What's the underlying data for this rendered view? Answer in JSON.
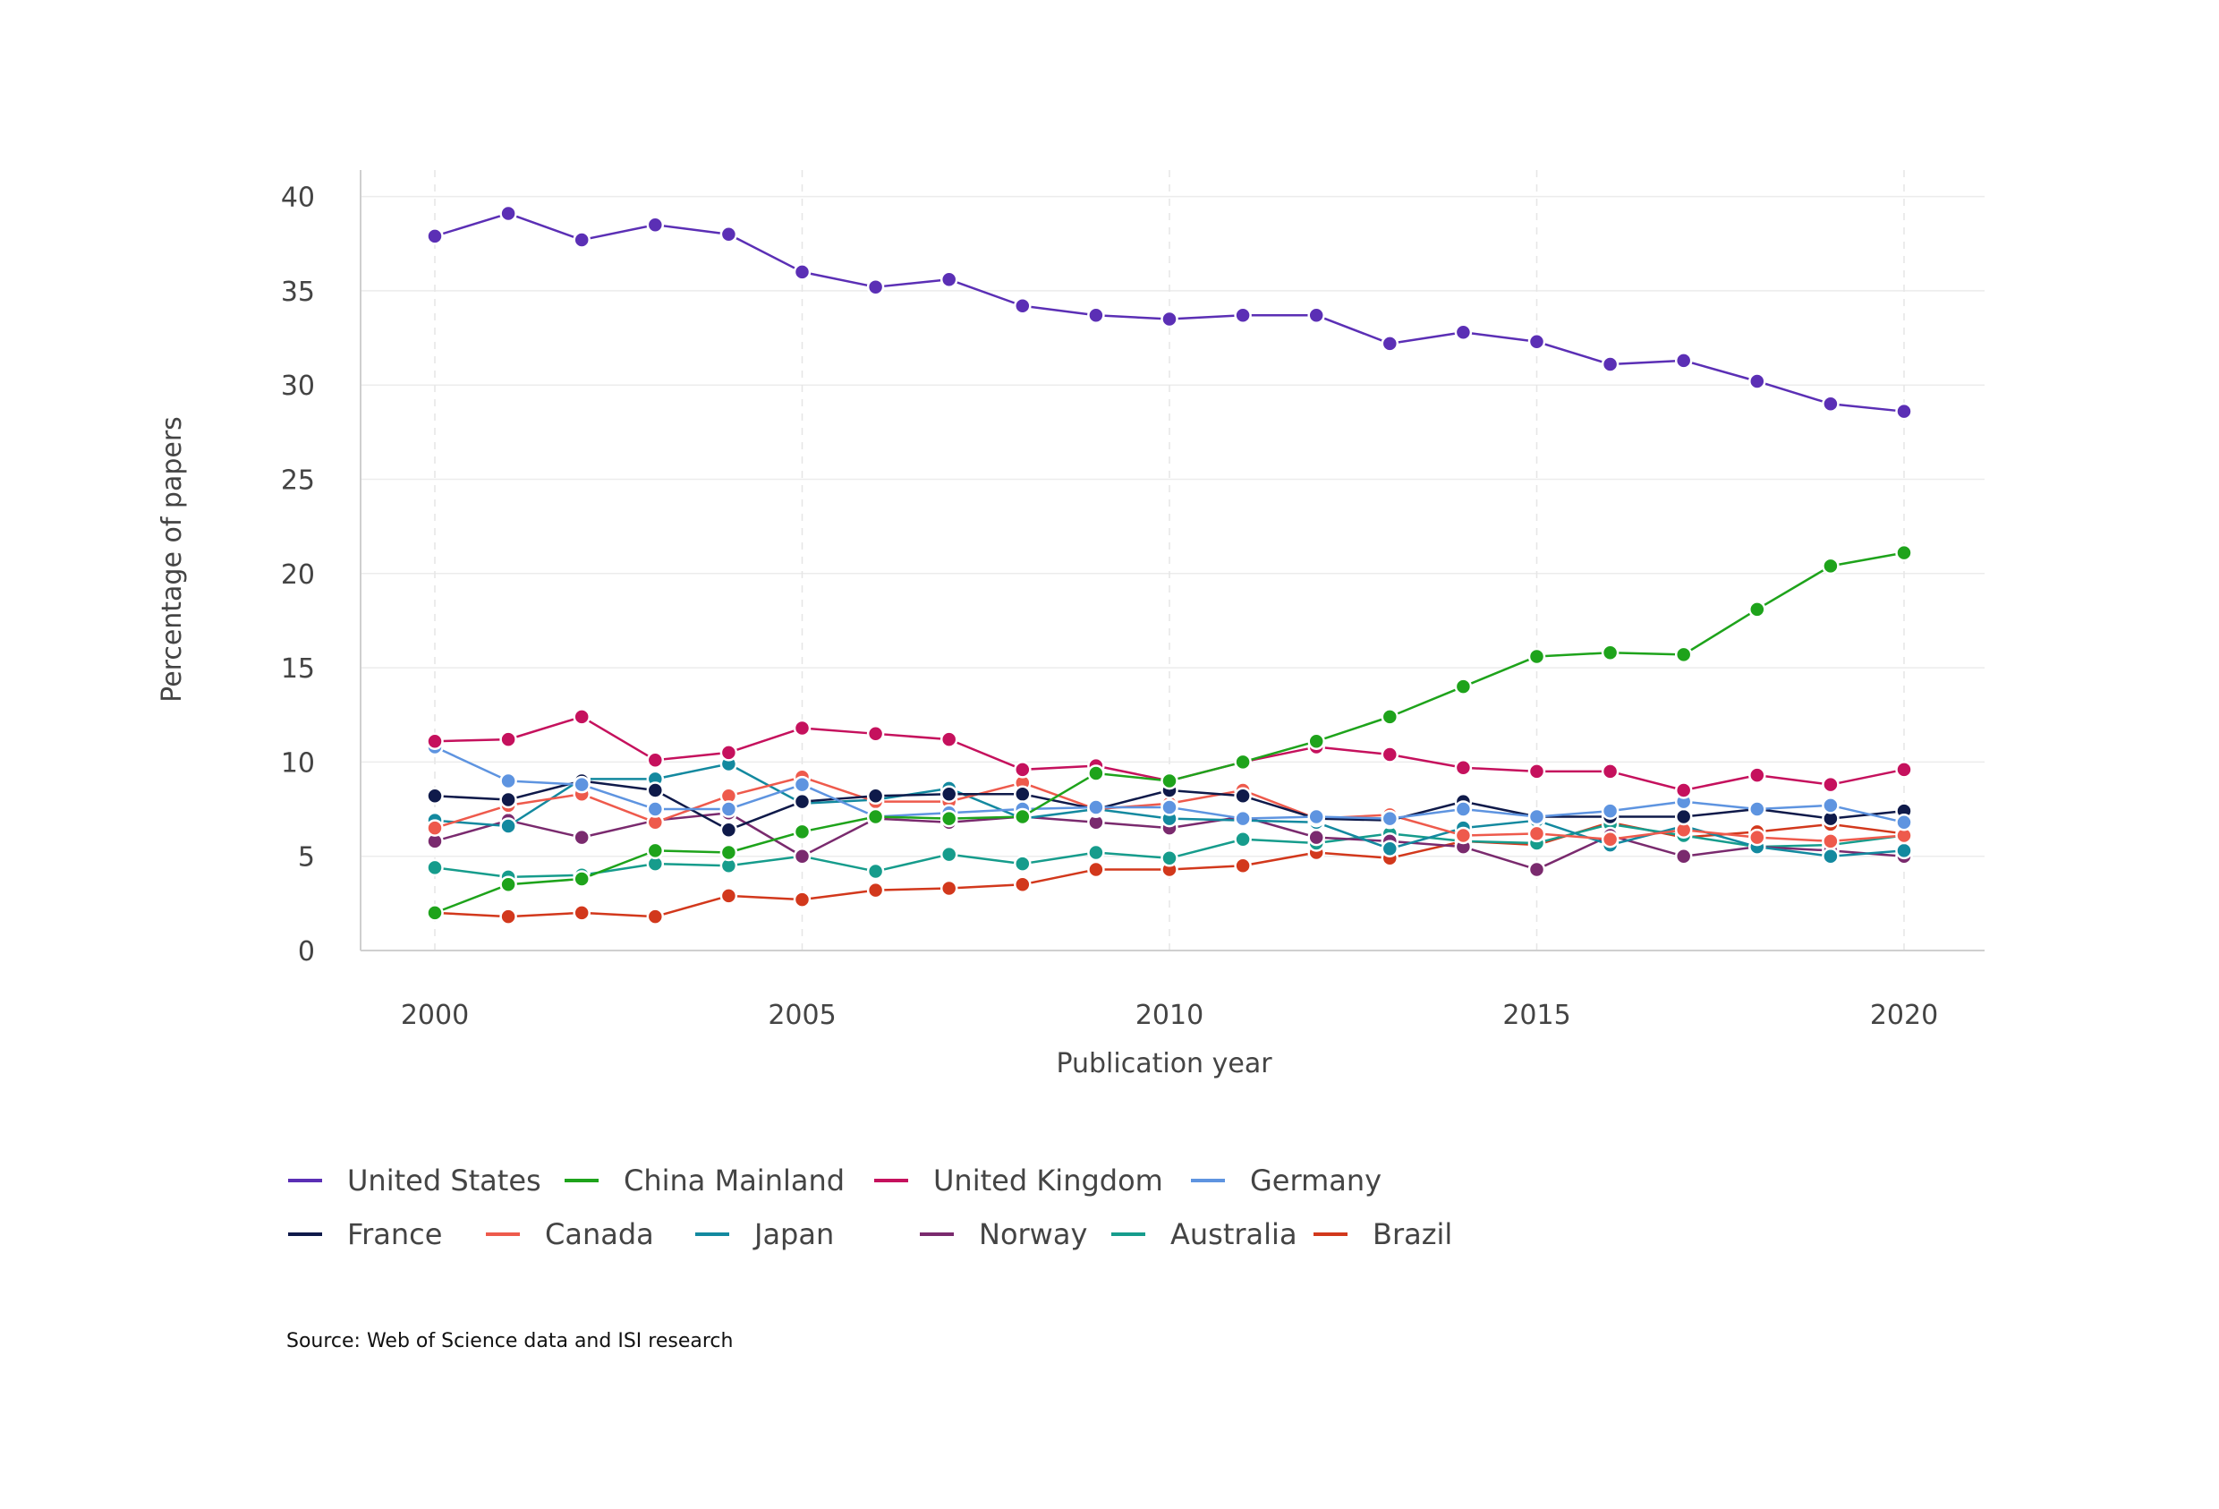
{
  "chart_data": {
    "type": "line",
    "title": "",
    "xlabel": "Publication year",
    "ylabel": "Percentage of papers",
    "xlim": [
      1999,
      2021
    ],
    "ylim": [
      0,
      41
    ],
    "x_ticks": [
      2000,
      2005,
      2010,
      2015,
      2020
    ],
    "y_ticks": [
      0,
      5,
      10,
      15,
      20,
      25,
      30,
      35,
      40
    ],
    "grid": true,
    "legend_position": "bottom",
    "x": [
      2000,
      2001,
      2002,
      2003,
      2004,
      2005,
      2006,
      2007,
      2008,
      2009,
      2010,
      2011,
      2012,
      2013,
      2014,
      2015,
      2016,
      2017,
      2018,
      2019,
      2020
    ],
    "series": [
      {
        "name": "United States",
        "color": "#5b2fb5",
        "values": [
          37.9,
          39.1,
          37.7,
          38.5,
          38.0,
          36.0,
          35.2,
          35.6,
          34.2,
          33.7,
          33.5,
          33.7,
          33.7,
          32.2,
          32.8,
          32.3,
          31.1,
          31.3,
          30.2,
          29.0,
          28.6
        ]
      },
      {
        "name": "China Mainland",
        "color": "#1ea31b",
        "values": [
          2.0,
          3.5,
          3.8,
          5.3,
          5.2,
          6.3,
          7.1,
          7.0,
          7.1,
          9.4,
          9.0,
          10.0,
          11.1,
          12.4,
          14.0,
          15.6,
          15.8,
          15.7,
          18.1,
          20.4,
          21.1
        ]
      },
      {
        "name": "United Kingdom",
        "color": "#c5115d",
        "values": [
          11.1,
          11.2,
          12.4,
          10.1,
          10.5,
          11.8,
          11.5,
          11.2,
          9.6,
          9.8,
          9.0,
          10.0,
          10.8,
          10.4,
          9.7,
          9.5,
          9.5,
          8.5,
          9.3,
          8.8,
          9.6
        ]
      },
      {
        "name": "Germany",
        "color": "#5e94e0",
        "values": [
          10.8,
          9.0,
          8.8,
          7.5,
          7.5,
          8.8,
          7.1,
          7.3,
          7.5,
          7.6,
          7.6,
          7.0,
          7.1,
          7.0,
          7.5,
          7.1,
          7.4,
          7.9,
          7.5,
          7.7,
          6.8
        ]
      },
      {
        "name": "France",
        "color": "#0f1a4a",
        "values": [
          8.2,
          8.0,
          9.0,
          8.5,
          6.4,
          7.9,
          8.2,
          8.3,
          8.3,
          7.5,
          8.5,
          8.2,
          7.0,
          6.9,
          7.9,
          7.1,
          7.1,
          7.1,
          7.5,
          7.0,
          7.4
        ]
      },
      {
        "name": "Canada",
        "color": "#ee5a4c",
        "values": [
          6.5,
          7.7,
          8.3,
          6.8,
          8.2,
          9.2,
          7.9,
          7.9,
          8.9,
          7.5,
          7.8,
          8.5,
          7.0,
          7.2,
          6.1,
          6.2,
          5.9,
          6.4,
          6.0,
          5.8,
          6.1
        ]
      },
      {
        "name": "Japan",
        "color": "#13899f",
        "values": [
          6.9,
          6.6,
          9.1,
          9.1,
          9.9,
          7.8,
          8.0,
          8.6,
          7.0,
          7.5,
          7.0,
          6.9,
          6.8,
          5.4,
          6.5,
          6.9,
          5.6,
          6.6,
          5.5,
          5.0,
          5.3
        ]
      },
      {
        "name": "Norway",
        "color": "#7a2a6e",
        "values": [
          5.8,
          6.9,
          6.0,
          6.9,
          7.3,
          5.0,
          7.0,
          6.8,
          7.1,
          6.8,
          6.5,
          7.1,
          6.0,
          5.8,
          5.5,
          4.3,
          6.1,
          5.0,
          5.5,
          5.3,
          5.0
        ]
      },
      {
        "name": "Australia",
        "color": "#169c8c",
        "values": [
          4.4,
          3.9,
          4.0,
          4.6,
          4.5,
          5.0,
          4.2,
          5.1,
          4.6,
          5.2,
          4.9,
          5.9,
          5.7,
          6.2,
          5.8,
          5.7,
          6.7,
          6.1,
          5.5,
          5.6,
          6.1
        ]
      },
      {
        "name": "Brazil",
        "color": "#d2381c",
        "values": [
          2.0,
          1.8,
          2.0,
          1.8,
          2.9,
          2.7,
          3.2,
          3.3,
          3.5,
          4.3,
          4.3,
          4.5,
          5.2,
          4.9,
          5.8,
          5.6,
          6.8,
          6.0,
          6.3,
          6.7,
          6.2
        ]
      }
    ]
  },
  "source_text": "Source: Web of Science data and ISI research"
}
